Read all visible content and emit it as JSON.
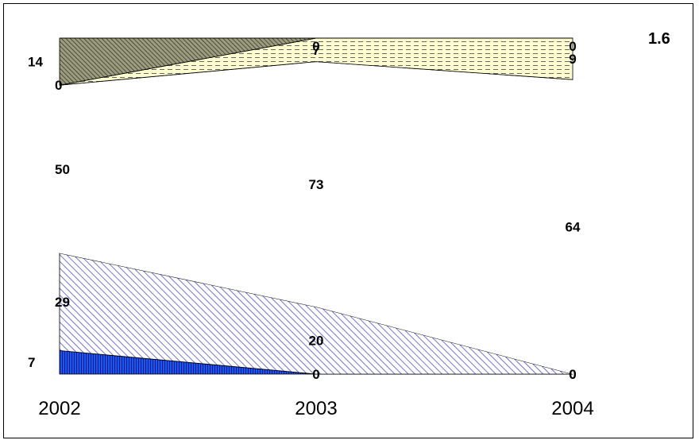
{
  "page_number": "1.6",
  "chart_data": {
    "type": "area",
    "stacked": true,
    "percent_stacked": true,
    "categories": [
      "2002",
      "2003",
      "2004"
    ],
    "series": [
      {
        "values": [
          7,
          0,
          0
        ],
        "fill": "#1a56f0",
        "pattern": "vertical-lines"
      },
      {
        "values": [
          29,
          20,
          0
        ],
        "fill": "#c8c8f4",
        "pattern": "diagonal-lines"
      },
      {
        "values": [
          50,
          73,
          64
        ],
        "fill": "#ffffff",
        "pattern": "none"
      },
      {
        "values": [
          0,
          7,
          9
        ],
        "fill": "#fefed0",
        "pattern": "dashes"
      },
      {
        "values": [
          14,
          0,
          0
        ],
        "fill": "#9c9c7e",
        "pattern": "dark-diagonal-lines"
      }
    ],
    "ylim": [
      0,
      100
    ],
    "grid": false,
    "legend": "none"
  }
}
